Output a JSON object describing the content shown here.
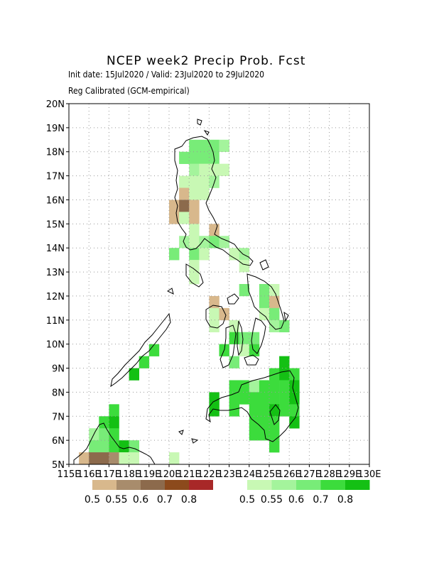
{
  "title": "NCEP week2 Precip Prob. Fcst",
  "subtitle_1": "Init date: 15Jul2020 / Valid: 23Jul2020 to 29Jul2020",
  "subtitle_2": "Reg Calibrated (GCM-empirical)",
  "map_extent": {
    "lon_min": 115,
    "lon_max": 130,
    "lat_min": 5,
    "lat_max": 20
  },
  "lat_labels": [
    "5N",
    "6N",
    "7N",
    "8N",
    "9N",
    "10N",
    "11N",
    "12N",
    "13N",
    "14N",
    "15N",
    "16N",
    "17N",
    "18N",
    "19N",
    "20N"
  ],
  "lon_labels": [
    "115E",
    "116E",
    "117E",
    "118E",
    "119E",
    "120E",
    "121E",
    "122E",
    "123E",
    "124E",
    "125E",
    "126E",
    "127E",
    "128E",
    "129E",
    "130E"
  ],
  "gridlines": true,
  "legend": {
    "below_normal": {
      "colors": [
        "#d8b88c",
        "#a88c6c",
        "#8c6a4c",
        "#8c4a1c",
        "#a82828"
      ],
      "labels": [
        "0.5",
        "0.55",
        "0.6",
        "0.7",
        "0.8"
      ]
    },
    "above_normal": {
      "colors": [
        "#c8f8b4",
        "#a4f49c",
        "#78ec78",
        "#3cdc3c",
        "#14c014"
      ],
      "labels": [
        "0.5",
        "0.55",
        "0.6",
        "0.7",
        "0.8"
      ]
    }
  },
  "colors": {
    "frame": "#000000",
    "grid": "#999999",
    "coast": "#000000"
  },
  "cells": [
    {
      "lon": 121,
      "lat": 18,
      "cat": "A",
      "lvl": 3
    },
    {
      "lon": 121.5,
      "lat": 18,
      "cat": "A",
      "lvl": 3
    },
    {
      "lon": 122,
      "lat": 18,
      "cat": "A",
      "lvl": 3
    },
    {
      "lon": 122.5,
      "lat": 18,
      "cat": "A",
      "lvl": 2
    },
    {
      "lon": 120.5,
      "lat": 17.5,
      "cat": "A",
      "lvl": 3
    },
    {
      "lon": 121,
      "lat": 17.5,
      "cat": "A",
      "lvl": 3
    },
    {
      "lon": 121.5,
      "lat": 17.5,
      "cat": "A",
      "lvl": 3
    },
    {
      "lon": 122,
      "lat": 17.5,
      "cat": "A",
      "lvl": 3
    },
    {
      "lon": 121,
      "lat": 17,
      "cat": "A",
      "lvl": 2
    },
    {
      "lon": 121.5,
      "lat": 17,
      "cat": "A",
      "lvl": 1
    },
    {
      "lon": 122,
      "lat": 17,
      "cat": "A",
      "lvl": 1
    },
    {
      "lon": 122.5,
      "lat": 17,
      "cat": "A",
      "lvl": 1
    },
    {
      "lon": 120.5,
      "lat": 16.5,
      "cat": "A",
      "lvl": 1
    },
    {
      "lon": 121,
      "lat": 16.5,
      "cat": "A",
      "lvl": 1
    },
    {
      "lon": 121.5,
      "lat": 16.5,
      "cat": "A",
      "lvl": 1
    },
    {
      "lon": 122,
      "lat": 16.5,
      "cat": "A",
      "lvl": 2
    },
    {
      "lon": 120.5,
      "lat": 16,
      "cat": "B",
      "lvl": 1
    },
    {
      "lon": 121,
      "lat": 16,
      "cat": "A",
      "lvl": 1
    },
    {
      "lon": 121.5,
      "lat": 16,
      "cat": "A",
      "lvl": 1
    },
    {
      "lon": 120,
      "lat": 15.5,
      "cat": "B",
      "lvl": 1
    },
    {
      "lon": 120.5,
      "lat": 15.5,
      "cat": "B",
      "lvl": 3
    },
    {
      "lon": 121,
      "lat": 15.5,
      "cat": "B",
      "lvl": 1
    },
    {
      "lon": 120,
      "lat": 15,
      "cat": "B",
      "lvl": 1
    },
    {
      "lon": 120.5,
      "lat": 15,
      "cat": "A",
      "lvl": 1
    },
    {
      "lon": 121,
      "lat": 15,
      "cat": "B",
      "lvl": 1
    },
    {
      "lon": 121,
      "lat": 14.5,
      "cat": "A",
      "lvl": 1
    },
    {
      "lon": 122,
      "lat": 14.5,
      "cat": "B",
      "lvl": 1
    },
    {
      "lon": 120.5,
      "lat": 14,
      "cat": "A",
      "lvl": 2
    },
    {
      "lon": 121,
      "lat": 14,
      "cat": "A",
      "lvl": 1
    },
    {
      "lon": 121.5,
      "lat": 14,
      "cat": "A",
      "lvl": 2
    },
    {
      "lon": 122,
      "lat": 14,
      "cat": "A",
      "lvl": 3
    },
    {
      "lon": 122.5,
      "lat": 14,
      "cat": "A",
      "lvl": 2
    },
    {
      "lon": 120,
      "lat": 13.5,
      "cat": "A",
      "lvl": 3
    },
    {
      "lon": 121,
      "lat": 13.5,
      "cat": "A",
      "lvl": 3
    },
    {
      "lon": 121.5,
      "lat": 13.5,
      "cat": "A",
      "lvl": 1
    },
    {
      "lon": 123,
      "lat": 13.5,
      "cat": "A",
      "lvl": 1
    },
    {
      "lon": 123.5,
      "lat": 13.5,
      "cat": "A",
      "lvl": 2
    },
    {
      "lon": 121,
      "lat": 13,
      "cat": "A",
      "lvl": 1
    },
    {
      "lon": 123.5,
      "lat": 13,
      "cat": "A",
      "lvl": 1
    },
    {
      "lon": 121,
      "lat": 12.5,
      "cat": "A",
      "lvl": 1
    },
    {
      "lon": 123.5,
      "lat": 12,
      "cat": "A",
      "lvl": 3
    },
    {
      "lon": 124.5,
      "lat": 12,
      "cat": "A",
      "lvl": 3
    },
    {
      "lon": 125,
      "lat": 12,
      "cat": "A",
      "lvl": 1
    },
    {
      "lon": 122,
      "lat": 11.5,
      "cat": "B",
      "lvl": 1
    },
    {
      "lon": 124.5,
      "lat": 11.5,
      "cat": "A",
      "lvl": 3
    },
    {
      "lon": 125,
      "lat": 11.5,
      "cat": "B",
      "lvl": 1
    },
    {
      "lon": 122,
      "lat": 11,
      "cat": "A",
      "lvl": 1
    },
    {
      "lon": 122.5,
      "lat": 11,
      "cat": "B",
      "lvl": 1
    },
    {
      "lon": 124.5,
      "lat": 11,
      "cat": "A",
      "lvl": 1
    },
    {
      "lon": 125,
      "lat": 11,
      "cat": "A",
      "lvl": 3
    },
    {
      "lon": 122,
      "lat": 10.5,
      "cat": "A",
      "lvl": 1
    },
    {
      "lon": 123,
      "lat": 10.5,
      "cat": "A",
      "lvl": 1
    },
    {
      "lon": 125,
      "lat": 10.5,
      "cat": "A",
      "lvl": 2
    },
    {
      "lon": 125.5,
      "lat": 10.5,
      "cat": "A",
      "lvl": 3
    },
    {
      "lon": 123,
      "lat": 10,
      "cat": "A",
      "lvl": 4
    },
    {
      "lon": 123.5,
      "lat": 10,
      "cat": "A",
      "lvl": 3
    },
    {
      "lon": 124,
      "lat": 10,
      "cat": "A",
      "lvl": 3
    },
    {
      "lon": 119,
      "lat": 9.5,
      "cat": "A",
      "lvl": 4
    },
    {
      "lon": 122.5,
      "lat": 9.5,
      "cat": "A",
      "lvl": 4
    },
    {
      "lon": 123.5,
      "lat": 9.5,
      "cat": "A",
      "lvl": 1
    },
    {
      "lon": 124,
      "lat": 9.5,
      "cat": "A",
      "lvl": 4
    },
    {
      "lon": 118.5,
      "lat": 9,
      "cat": "A",
      "lvl": 4
    },
    {
      "lon": 123,
      "lat": 9,
      "cat": "A",
      "lvl": 3
    },
    {
      "lon": 125.5,
      "lat": 9,
      "cat": "A",
      "lvl": 5
    },
    {
      "lon": 118,
      "lat": 8.5,
      "cat": "A",
      "lvl": 5
    },
    {
      "lon": 125,
      "lat": 8.5,
      "cat": "A",
      "lvl": 4
    },
    {
      "lon": 125.5,
      "lat": 8.5,
      "cat": "A",
      "lvl": 5
    },
    {
      "lon": 126,
      "lat": 8.5,
      "cat": "A",
      "lvl": 4
    },
    {
      "lon": 123,
      "lat": 8,
      "cat": "A",
      "lvl": 4
    },
    {
      "lon": 123.5,
      "lat": 8,
      "cat": "A",
      "lvl": 4
    },
    {
      "lon": 124,
      "lat": 8,
      "cat": "A",
      "lvl": 2
    },
    {
      "lon": 124.5,
      "lat": 8,
      "cat": "A",
      "lvl": 4
    },
    {
      "lon": 125,
      "lat": 8,
      "cat": "A",
      "lvl": 4
    },
    {
      "lon": 125.5,
      "lat": 8,
      "cat": "A",
      "lvl": 4
    },
    {
      "lon": 126,
      "lat": 8,
      "cat": "A",
      "lvl": 5
    },
    {
      "lon": 122,
      "lat": 7.5,
      "cat": "A",
      "lvl": 5
    },
    {
      "lon": 123,
      "lat": 7.5,
      "cat": "A",
      "lvl": 4
    },
    {
      "lon": 123.5,
      "lat": 7.5,
      "cat": "A",
      "lvl": 4
    },
    {
      "lon": 124,
      "lat": 7.5,
      "cat": "A",
      "lvl": 4
    },
    {
      "lon": 124.5,
      "lat": 7.5,
      "cat": "A",
      "lvl": 4
    },
    {
      "lon": 125,
      "lat": 7.5,
      "cat": "A",
      "lvl": 4
    },
    {
      "lon": 125.5,
      "lat": 7.5,
      "cat": "A",
      "lvl": 4
    },
    {
      "lon": 126,
      "lat": 7.5,
      "cat": "A",
      "lvl": 5
    },
    {
      "lon": 117,
      "lat": 7,
      "cat": "A",
      "lvl": 4
    },
    {
      "lon": 122,
      "lat": 7,
      "cat": "A",
      "lvl": 5
    },
    {
      "lon": 123,
      "lat": 7,
      "cat": "A",
      "lvl": 4
    },
    {
      "lon": 124,
      "lat": 7,
      "cat": "A",
      "lvl": 4
    },
    {
      "lon": 124.5,
      "lat": 7,
      "cat": "A",
      "lvl": 4
    },
    {
      "lon": 125,
      "lat": 7,
      "cat": "A",
      "lvl": 5
    },
    {
      "lon": 125.5,
      "lat": 7,
      "cat": "A",
      "lvl": 4
    },
    {
      "lon": 126,
      "lat": 7,
      "cat": "A",
      "lvl": 4
    },
    {
      "lon": 116.5,
      "lat": 6.5,
      "cat": "A",
      "lvl": 4
    },
    {
      "lon": 117,
      "lat": 6.5,
      "cat": "A",
      "lvl": 5
    },
    {
      "lon": 124,
      "lat": 6.5,
      "cat": "A",
      "lvl": 4
    },
    {
      "lon": 124.5,
      "lat": 6.5,
      "cat": "A",
      "lvl": 4
    },
    {
      "lon": 125,
      "lat": 6.5,
      "cat": "A",
      "lvl": 4
    },
    {
      "lon": 126,
      "lat": 6.5,
      "cat": "A",
      "lvl": 5
    },
    {
      "lon": 116,
      "lat": 6,
      "cat": "A",
      "lvl": 2
    },
    {
      "lon": 116.5,
      "lat": 6,
      "cat": "A",
      "lvl": 3
    },
    {
      "lon": 117,
      "lat": 6,
      "cat": "A",
      "lvl": 4
    },
    {
      "lon": 124,
      "lat": 6,
      "cat": "A",
      "lvl": 4
    },
    {
      "lon": 124.5,
      "lat": 6,
      "cat": "A",
      "lvl": 4
    },
    {
      "lon": 125,
      "lat": 6,
      "cat": "A",
      "lvl": 4
    },
    {
      "lon": 116,
      "lat": 5.5,
      "cat": "A",
      "lvl": 3
    },
    {
      "lon": 116.5,
      "lat": 5.5,
      "cat": "A",
      "lvl": 3
    },
    {
      "lon": 117,
      "lat": 5.5,
      "cat": "A",
      "lvl": 4
    },
    {
      "lon": 117.5,
      "lat": 5.5,
      "cat": "A",
      "lvl": 5
    },
    {
      "lon": 118,
      "lat": 5.5,
      "cat": "A",
      "lvl": 3
    },
    {
      "lon": 125,
      "lat": 5.5,
      "cat": "A",
      "lvl": 4
    },
    {
      "lon": 115.5,
      "lat": 5,
      "cat": "B",
      "lvl": 1
    },
    {
      "lon": 116,
      "lat": 5,
      "cat": "B",
      "lvl": 3
    },
    {
      "lon": 116.5,
      "lat": 5,
      "cat": "B",
      "lvl": 3
    },
    {
      "lon": 117,
      "lat": 5,
      "cat": "B",
      "lvl": 2
    },
    {
      "lon": 117.5,
      "lat": 5,
      "cat": "A",
      "lvl": 1
    },
    {
      "lon": 118,
      "lat": 5,
      "cat": "A",
      "lvl": 1
    },
    {
      "lon": 120,
      "lat": 5,
      "cat": "A",
      "lvl": 1
    }
  ]
}
